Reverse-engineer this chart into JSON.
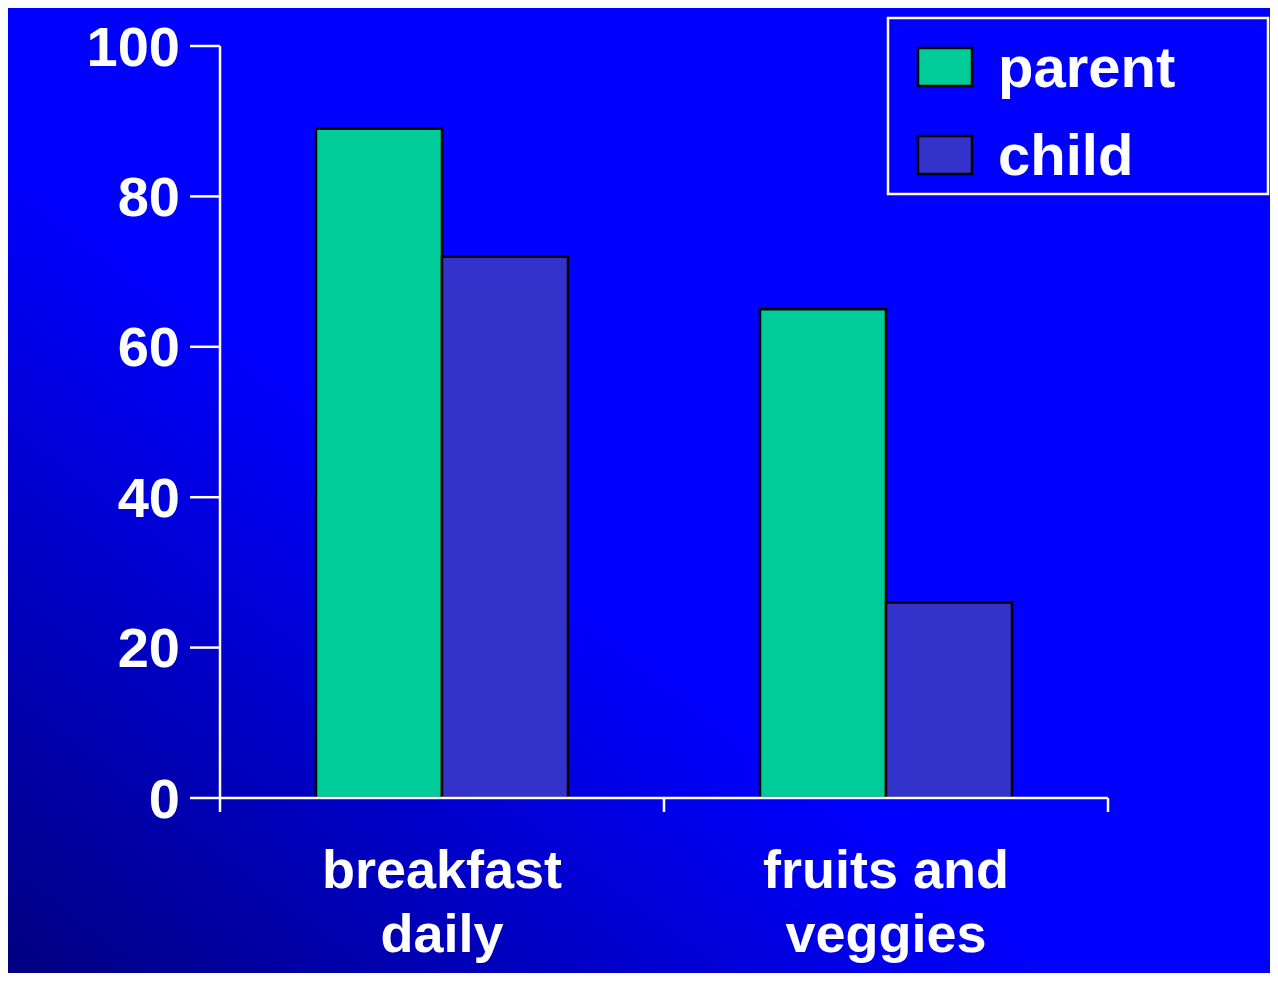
{
  "chart_data": {
    "type": "bar",
    "categories": [
      "breakfast daily",
      "fruits and veggies"
    ],
    "series": [
      {
        "name": "parent",
        "color": "#00cc99",
        "values": [
          89,
          65
        ]
      },
      {
        "name": "child",
        "color": "#3333cc",
        "values": [
          72,
          26
        ]
      }
    ],
    "ylim": [
      0,
      100
    ],
    "yticks": [
      0,
      20,
      40,
      60,
      80,
      100
    ],
    "legend": "top right",
    "grid": false
  }
}
